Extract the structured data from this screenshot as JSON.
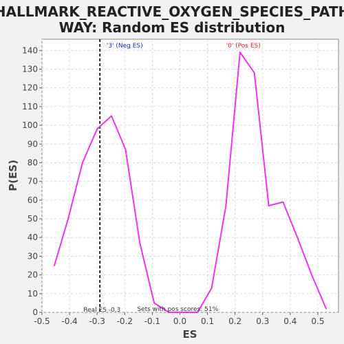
{
  "chart_data": {
    "type": "line",
    "title_line1": "HALLMARK_REACTIVE_OXYGEN_SPECIES_PATH",
    "title_line2": "WAY: Random ES distribution",
    "xlabel": "ES",
    "ylabel": "P(ES)",
    "xlim": [
      -0.5,
      0.575
    ],
    "ylim": [
      0,
      146
    ],
    "x_ticks": [
      -0.5,
      -0.4,
      -0.3,
      -0.2,
      -0.1,
      0.0,
      0.1,
      0.2,
      0.3,
      0.4,
      0.5
    ],
    "x_tick_labels": [
      "-0.5",
      "-0.4",
      "-0.3",
      "-0.2",
      "-0.1",
      "0.0",
      "0.1",
      "0.2",
      "0.3",
      "0.4",
      "0.5"
    ],
    "y_ticks": [
      0,
      10,
      20,
      30,
      40,
      50,
      60,
      70,
      80,
      90,
      100,
      110,
      120,
      130,
      140
    ],
    "y_tick_labels": [
      "0",
      "10",
      "20",
      "30",
      "40",
      "50",
      "60",
      "70",
      "80",
      "90",
      "100",
      "110",
      "120",
      "130",
      "140"
    ],
    "grid": true,
    "series": [
      {
        "color": "#ee33ee",
        "x": [
          -0.455,
          -0.405,
          -0.353,
          -0.3,
          -0.248,
          -0.197,
          -0.145,
          -0.093,
          -0.04,
          0.012,
          0.064,
          0.115,
          0.167,
          0.218,
          0.27,
          0.322,
          0.374,
          0.426,
          0.478,
          0.53
        ],
        "y": [
          25,
          50,
          80,
          98,
          105,
          87,
          37,
          5,
          0,
          0,
          0,
          13,
          57,
          139,
          128,
          57,
          59,
          40,
          20,
          2
        ]
      }
    ],
    "annotations": {
      "neg_label": "'3' (Neg ES)",
      "neg_color": "#2222dd",
      "pos_label": "'0' (Pos ES)",
      "pos_color": "#dd2222",
      "real_es_label": "Real ES -0.3",
      "real_es_value": -0.29,
      "pos_scores_label": "Sets with pos scores: 51%"
    }
  }
}
